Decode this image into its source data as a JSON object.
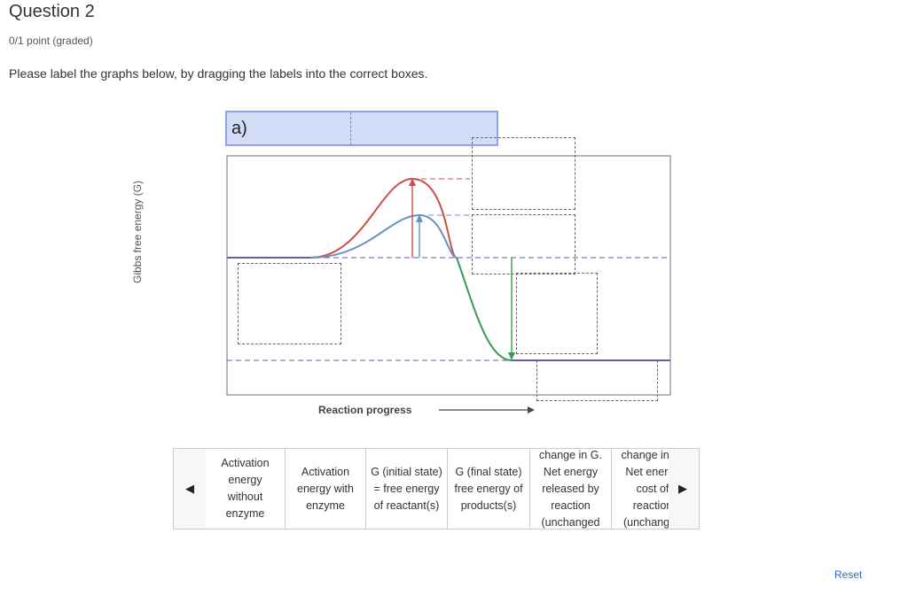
{
  "question": {
    "title": "Question 2",
    "points": "0/1 point (graded)",
    "instructions": "Please label the graphs below, by dragging the labels into the correct boxes."
  },
  "figure": {
    "panel_label": "a)",
    "y_axis_label": "Gibbs free energy (G)",
    "x_axis_label": "Reaction progress",
    "colors": {
      "uncatalyzed_curve": "#c8504a",
      "catalyzed_curve": "#6a8fc8",
      "product_curve": "#3a9a55",
      "level_line": "#6b5aa8"
    }
  },
  "tray": {
    "items": [
      {
        "text": "Activation energy without enzyme"
      },
      {
        "text": "Activation energy with enzyme"
      },
      {
        "text": "G (initial state) = free energy of reactant(s)"
      },
      {
        "text": "G (final state) free energy of products(s)"
      },
      {
        "text": "change in G. Net energy released by reaction (unchanged"
      },
      {
        "text": "change in G. Net energy cost of reaction (unchanged"
      }
    ],
    "prev_icon": "triangle-left-icon",
    "next_icon": "triangle-right-icon"
  },
  "reset_label": "Reset"
}
